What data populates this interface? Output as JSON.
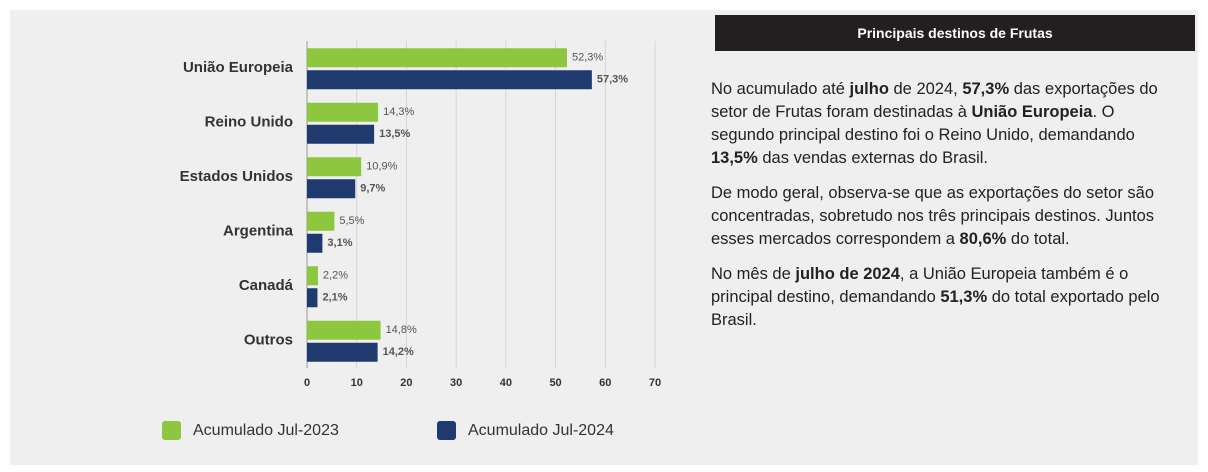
{
  "chart_data": {
    "type": "bar",
    "orientation": "horizontal",
    "categories": [
      "União Europeia",
      "Reino Unido",
      "Estados Unidos",
      "Argentina",
      "Canadá",
      "Outros"
    ],
    "series": [
      {
        "name": "Acumulado Jul-2023",
        "color": "#8dc63f",
        "values": [
          52.3,
          14.3,
          10.9,
          5.5,
          2.2,
          14.8
        ],
        "value_labels": [
          "52,3%",
          "14,3%",
          "10,9%",
          "5,5%",
          "2,2%",
          "14,8%"
        ]
      },
      {
        "name": "Acumulado Jul-2024",
        "color": "#1f3a6e",
        "values": [
          57.3,
          13.5,
          9.7,
          3.1,
          2.1,
          14.2
        ],
        "value_labels": [
          "57,3%",
          "13,5%",
          "9,7%",
          "3,1%",
          "2,1%",
          "14,2%"
        ]
      }
    ],
    "xlim": [
      0,
      70
    ],
    "xticks": [
      0,
      10,
      20,
      30,
      40,
      50,
      60,
      70
    ],
    "grid": true,
    "legend": "bottom"
  },
  "panel": {
    "title": "Principais destinos de Frutas",
    "paragraphs": [
      [
        {
          "text": "No acumulado até "
        },
        {
          "text": "julho",
          "bold": true
        },
        {
          "text": " de 2024, "
        },
        {
          "text": "57,3%",
          "bold": true
        },
        {
          "text": " das exportações do setor de Frutas foram destinadas à "
        },
        {
          "text": "União Europeia",
          "bold": true
        },
        {
          "text": ". O segundo principal destino foi o Reino Unido, demandando "
        },
        {
          "text": "13,5%",
          "bold": true
        },
        {
          "text": " das vendas externas do Brasil."
        }
      ],
      [
        {
          "text": "De modo geral, observa-se que as exportações do setor são concentradas, sobretudo nos três principais destinos. Juntos esses mercados correspondem a "
        },
        {
          "text": "80,6%",
          "bold": true
        },
        {
          "text": " do total."
        }
      ],
      [
        {
          "text": "No mês de "
        },
        {
          "text": "julho de 2024",
          "bold": true
        },
        {
          "text": ", a União Europeia também é o principal destino, demandando "
        },
        {
          "text": "51,3%",
          "bold": true
        },
        {
          "text": " do total exportado pelo Brasil."
        }
      ]
    ]
  }
}
